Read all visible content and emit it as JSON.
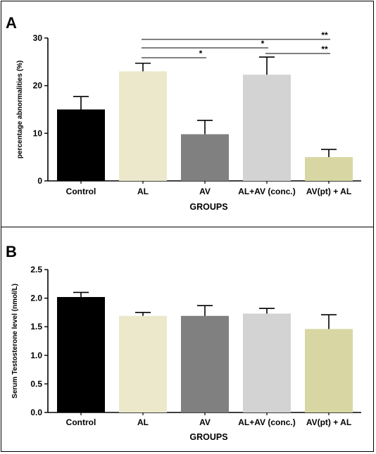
{
  "chart_data": [
    {
      "type": "bar",
      "panel_label": "A",
      "categories": [
        "Control",
        "AL",
        "AV",
        "AL+AV (conc.)",
        "AV(pt) + AL"
      ],
      "values": [
        15,
        23,
        9.8,
        22.3,
        5
      ],
      "errors": [
        2.7,
        1.7,
        2.9,
        3.7,
        1.6
      ],
      "colors": [
        "#000000",
        "#ece8cc",
        "#808080",
        "#d3d3d3",
        "#d8d7a3"
      ],
      "xlabel": "GROUPS",
      "ylabel": "percentage abnormalities (%)",
      "ylim": [
        0,
        30
      ],
      "yticks": [
        "0",
        "10",
        "20",
        "30"
      ],
      "significance": [
        {
          "from": 1,
          "to": 4,
          "label": "**"
        },
        {
          "from": 1,
          "to": 3,
          "label": "*"
        },
        {
          "from": 1,
          "to": 2,
          "label": "*"
        },
        {
          "from": 3,
          "to": 4,
          "label": "**"
        }
      ]
    },
    {
      "type": "bar",
      "panel_label": "B",
      "categories": [
        "Control",
        "AL",
        "AV",
        "AL+AV (conc.)",
        "AV(pt) + AL"
      ],
      "values": [
        2.02,
        1.69,
        1.69,
        1.73,
        1.46
      ],
      "errors": [
        0.08,
        0.06,
        0.18,
        0.09,
        0.25
      ],
      "colors": [
        "#000000",
        "#ece8cc",
        "#808080",
        "#d3d3d3",
        "#d8d7a3"
      ],
      "xlabel": "GROUPS",
      "ylabel": "Serum Testosterone level (nmol/L)",
      "ylim": [
        0,
        2.5
      ],
      "yticks": [
        "0.0",
        "0.5",
        "1.0",
        "1.5",
        "2.0",
        "2.5"
      ]
    }
  ]
}
